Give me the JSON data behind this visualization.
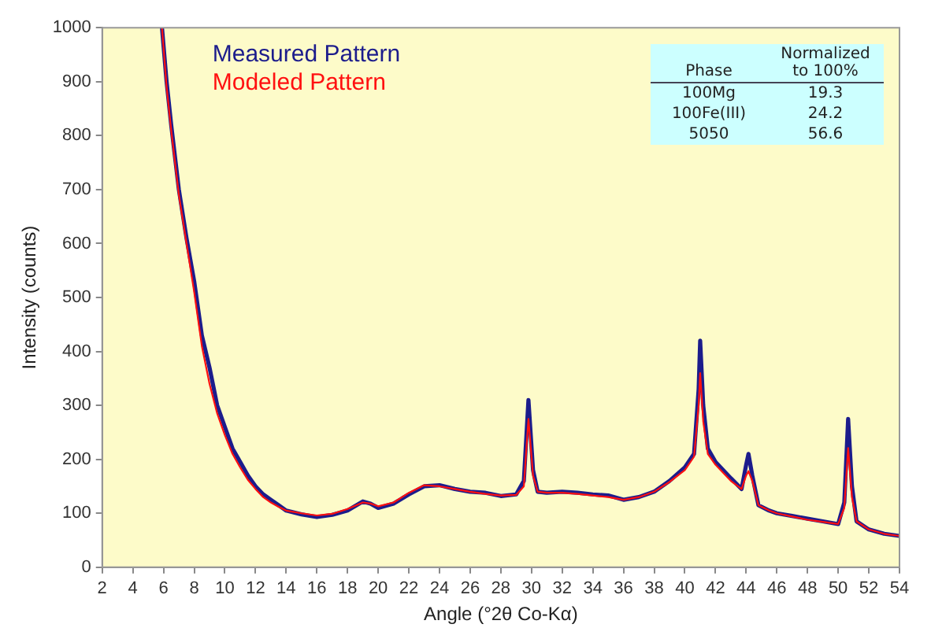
{
  "chart_data": {
    "type": "line",
    "xlabel": "Angle (°2θ Co-Kα)",
    "ylabel": "Intensity (counts)",
    "xlim": [
      2,
      54
    ],
    "xticks": [
      2,
      4,
      6,
      8,
      10,
      12,
      14,
      16,
      18,
      20,
      22,
      24,
      26,
      28,
      30,
      32,
      34,
      36,
      38,
      40,
      42,
      44,
      46,
      48,
      50,
      52,
      54
    ],
    "ylim": [
      0,
      1000
    ],
    "yticks": [
      0,
      100,
      200,
      300,
      400,
      500,
      600,
      700,
      800,
      900,
      1000
    ],
    "grid": false,
    "legend": "top left",
    "marker": "none",
    "line_style": "solid",
    "annotations": [
      "Phase",
      "Normalized to 100%",
      "100Mg",
      "19.3",
      "100Fe(III)",
      "24.2",
      "5050",
      "56.6"
    ],
    "series": [
      {
        "name": "Measured Pattern",
        "color": "#1c1c8c",
        "x": [
          5.9,
          6.2,
          6.5,
          7,
          7.5,
          8,
          8.5,
          9,
          9.5,
          10,
          10.5,
          11,
          11.5,
          12,
          12.5,
          13,
          13.5,
          14,
          15,
          16,
          17,
          18,
          19,
          19.5,
          20,
          21,
          22,
          23,
          24,
          25,
          26,
          27,
          28,
          29,
          29.5,
          29.8,
          30.1,
          30.4,
          31,
          32,
          33,
          34,
          35,
          36,
          37,
          38,
          39,
          40,
          40.6,
          40.9,
          41,
          41.2,
          41.5,
          42,
          43,
          43.7,
          44,
          44.15,
          44.4,
          44.8,
          45.5,
          46,
          47,
          48,
          49,
          50,
          50.4,
          50.65,
          50.9,
          51.2,
          52,
          53,
          54
        ],
        "values": [
          1000,
          900,
          820,
          700,
          610,
          530,
          430,
          370,
          300,
          260,
          220,
          195,
          170,
          150,
          135,
          125,
          115,
          105,
          98,
          93,
          97,
          105,
          122,
          118,
          110,
          118,
          135,
          150,
          152,
          145,
          140,
          138,
          132,
          135,
          160,
          310,
          180,
          140,
          138,
          140,
          138,
          135,
          133,
          125,
          130,
          140,
          160,
          185,
          210,
          330,
          420,
          300,
          220,
          195,
          165,
          145,
          190,
          210,
          170,
          115,
          105,
          100,
          95,
          90,
          85,
          80,
          120,
          275,
          150,
          85,
          70,
          62,
          58
        ]
      },
      {
        "name": "Modeled Pattern",
        "color": "#ff1010",
        "x": [
          5.9,
          6.2,
          6.5,
          7,
          7.5,
          8,
          8.5,
          9,
          9.5,
          10,
          10.5,
          11,
          11.5,
          12,
          12.5,
          13,
          13.5,
          14,
          15,
          16,
          17,
          18,
          19,
          19.5,
          20,
          21,
          22,
          23,
          24,
          25,
          26,
          27,
          28,
          29,
          29.5,
          29.8,
          30.1,
          30.4,
          31,
          32,
          33,
          34,
          35,
          36,
          37,
          38,
          39,
          40,
          40.6,
          40.9,
          41,
          41.2,
          41.5,
          42,
          43,
          43.7,
          44,
          44.15,
          44.4,
          44.8,
          45.5,
          46,
          47,
          48,
          49,
          50,
          50.4,
          50.65,
          50.9,
          51.2,
          52,
          53,
          54
        ],
        "values": [
          1000,
          890,
          810,
          690,
          600,
          510,
          410,
          340,
          285,
          245,
          210,
          185,
          162,
          145,
          130,
          120,
          112,
          105,
          100,
          96,
          99,
          108,
          120,
          118,
          113,
          120,
          138,
          152,
          150,
          145,
          140,
          136,
          133,
          134,
          150,
          275,
          170,
          140,
          138,
          138,
          136,
          133,
          130,
          125,
          130,
          140,
          158,
          180,
          205,
          300,
          360,
          270,
          210,
          190,
          160,
          145,
          170,
          178,
          160,
          115,
          105,
          100,
          94,
          88,
          84,
          80,
          110,
          221,
          130,
          85,
          70,
          62,
          58
        ]
      }
    ]
  }
}
